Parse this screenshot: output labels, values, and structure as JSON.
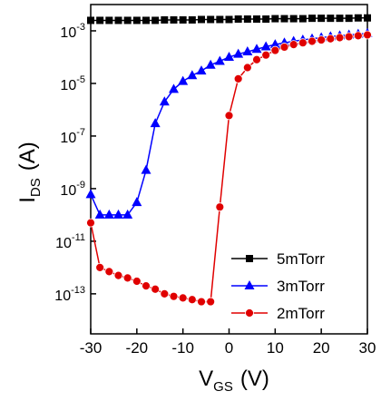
{
  "chart_data": {
    "type": "line",
    "x_label": {
      "main": "V",
      "sub": "GS",
      "unit": "(V)"
    },
    "y_label": {
      "main": "I",
      "sub": "DS",
      "unit": "(A)"
    },
    "xlim": [
      -30,
      30
    ],
    "xticks": [
      -30,
      -20,
      -10,
      0,
      10,
      20,
      30
    ],
    "ylim": [
      3e-15,
      0.01
    ],
    "y_scale": "log",
    "yticks": [
      {
        "value": 0.001,
        "label": "10",
        "power": "-3"
      },
      {
        "value": 1e-05,
        "label": "10",
        "power": "-5"
      },
      {
        "value": 1e-07,
        "label": "10",
        "power": "-7"
      },
      {
        "value": 1e-09,
        "label": "10",
        "power": "-9"
      },
      {
        "value": 1e-11,
        "label": "10",
        "power": "-11"
      },
      {
        "value": 1e-13,
        "label": "10",
        "power": "-13"
      }
    ],
    "legend": "lower right",
    "x": [
      -30,
      -28,
      -26,
      -24,
      -22,
      -20,
      -18,
      -16,
      -14,
      -12,
      -10,
      -8,
      -6,
      -4,
      -2,
      0,
      2,
      4,
      6,
      8,
      10,
      12,
      14,
      16,
      18,
      20,
      22,
      24,
      26,
      28,
      30
    ],
    "series": [
      {
        "name": "5mTorr",
        "color": "#000000",
        "marker": "square",
        "values": [
          0.0025,
          0.0025,
          0.0025,
          0.0025,
          0.0025,
          0.0025,
          0.0025,
          0.0025,
          0.0026,
          0.0026,
          0.0026,
          0.0026,
          0.0027,
          0.0027,
          0.0027,
          0.0027,
          0.0028,
          0.0028,
          0.0028,
          0.0028,
          0.0029,
          0.0029,
          0.0029,
          0.0029,
          0.003,
          0.003,
          0.003,
          0.003,
          0.003,
          0.0031,
          0.0031
        ]
      },
      {
        "name": "3mTorr",
        "color": "#0000ff",
        "marker": "triangle",
        "values": [
          6e-10,
          1e-10,
          1e-10,
          1e-10,
          1e-10,
          3e-10,
          5e-09,
          3e-07,
          2e-06,
          6e-06,
          1.2e-05,
          2e-05,
          3e-05,
          5e-05,
          7e-05,
          0.0001,
          0.00013,
          0.00016,
          0.0002,
          0.00025,
          0.0003,
          0.00035,
          0.0004,
          0.00045,
          0.0005,
          0.00055,
          0.0006,
          0.00065,
          0.0007,
          0.00075,
          0.0008
        ]
      },
      {
        "name": "2mTorr",
        "color": "#e00000",
        "marker": "circle",
        "values": [
          5e-11,
          1e-12,
          7e-13,
          5e-13,
          4e-13,
          3e-13,
          2e-13,
          1.5e-13,
          1e-13,
          8e-14,
          7e-14,
          6e-14,
          5e-14,
          5e-14,
          2e-10,
          6e-07,
          1.5e-05,
          4e-05,
          8e-05,
          0.00012,
          0.00018,
          0.00024,
          0.0003,
          0.00035,
          0.0004,
          0.00045,
          0.0005,
          0.00055,
          0.0006,
          0.00065,
          0.0007
        ]
      }
    ]
  }
}
